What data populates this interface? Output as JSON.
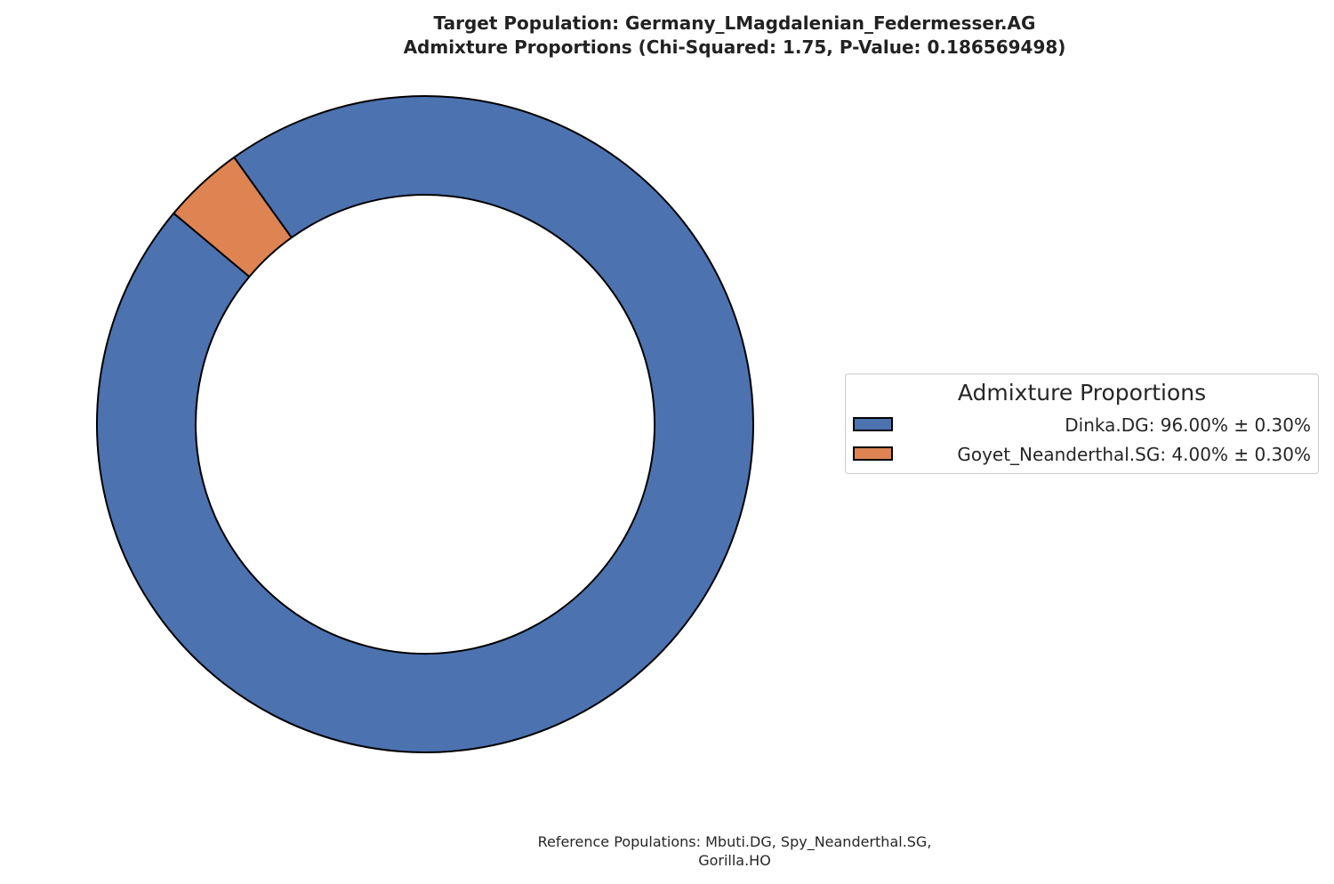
{
  "colors": {
    "series_1": "#4c72b0",
    "series_2": "#dd8452",
    "edge": "#000000",
    "background": "#ffffff"
  },
  "chart_data": {
    "type": "pie",
    "variant": "donut",
    "title_lines": [
      "Target Population: Germany_LMagdalenian_Federmesser.AG",
      "Admixture Proportions (Chi-Squared: 1.75, P-Value: 0.186569498)"
    ],
    "slices": [
      {
        "name": "Dinka.DG",
        "value": 96.0,
        "error": 0.3,
        "color": "#4c72b0",
        "legend_label": "Dinka.DG: 96.00% ± 0.30%"
      },
      {
        "name": "Goyet_Neanderthal.SG",
        "value": 4.0,
        "error": 0.3,
        "color": "#dd8452",
        "legend_label": "Goyet_Neanderthal.SG: 4.00% ± 0.30%"
      }
    ],
    "start_angle_deg": 140,
    "direction": "counterclockwise",
    "legend": {
      "title": "Admixture Proportions",
      "placement": "right"
    },
    "footnote_lines": [
      "Reference Populations: Mbuti.DG,   Spy_Neanderthal.SG,",
      "Gorilla.HO"
    ]
  }
}
